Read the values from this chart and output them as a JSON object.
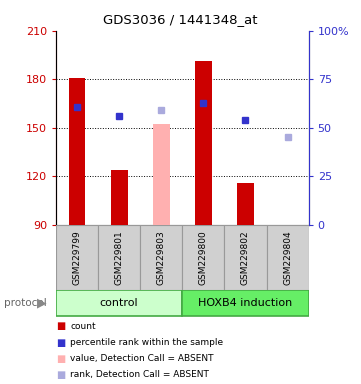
{
  "title": "GDS3036 / 1441348_at",
  "samples": [
    "GSM229799",
    "GSM229801",
    "GSM229803",
    "GSM229800",
    "GSM229802",
    "GSM229804"
  ],
  "ylim_left": [
    90,
    210
  ],
  "ylim_right": [
    0,
    100
  ],
  "yticks_left": [
    90,
    120,
    150,
    180,
    210
  ],
  "yticks_right": [
    0,
    25,
    50,
    75,
    100
  ],
  "ytick_labels_right": [
    "0",
    "25",
    "50",
    "75",
    "100%"
  ],
  "bar_values": [
    181,
    124,
    152,
    191,
    116,
    88
  ],
  "bar_colors": [
    "#cc0000",
    "#cc0000",
    "#ffb0b0",
    "#cc0000",
    "#cc0000",
    "#ffb0b0"
  ],
  "dot_values": [
    163,
    157,
    161,
    165,
    155,
    144
  ],
  "dot_colors": [
    "#3333cc",
    "#3333cc",
    "#aaaadd",
    "#3333cc",
    "#3333cc",
    "#aaaadd"
  ],
  "base_value": 90,
  "left_axis_color": "#cc0000",
  "right_axis_color": "#3333cc",
  "legend_items": [
    {
      "color": "#cc0000",
      "label": "count"
    },
    {
      "color": "#3333cc",
      "label": "percentile rank within the sample"
    },
    {
      "color": "#ffb0b0",
      "label": "value, Detection Call = ABSENT"
    },
    {
      "color": "#aaaadd",
      "label": "rank, Detection Call = ABSENT"
    }
  ],
  "control_color": "#ccffcc",
  "hoxb4_color": "#66ee66",
  "group_border": "#44aa44",
  "sample_box_color": "#d0d0d0",
  "sample_box_border": "#999999"
}
